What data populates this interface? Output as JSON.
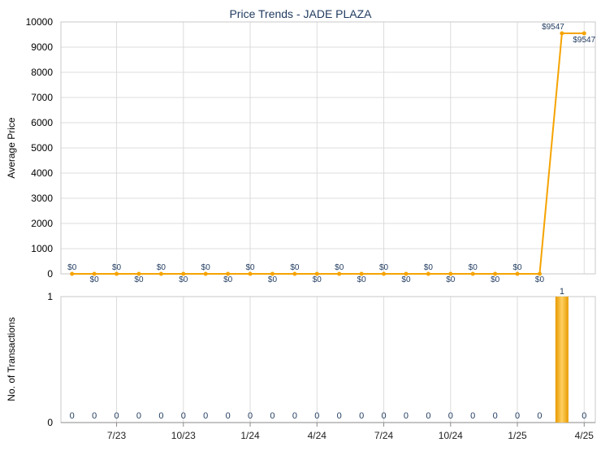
{
  "chart_data": [
    {
      "type": "line",
      "title": "Price Trends - JADE PLAZA",
      "ylabel": "Average Price",
      "xlabel": "",
      "ylim": [
        0,
        10000
      ],
      "yticks": [
        "0",
        "1000",
        "2000",
        "3000",
        "4000",
        "5000",
        "6000",
        "7000",
        "8000",
        "9000",
        "10000"
      ],
      "x": [
        "2023-05",
        "2023-06",
        "2023-07",
        "2023-08",
        "2023-09",
        "2023-10",
        "2023-11",
        "2023-12",
        "2024-01",
        "2024-02",
        "2024-03",
        "2024-04",
        "2024-05",
        "2024-06",
        "2024-07",
        "2024-08",
        "2024-09",
        "2024-10",
        "2024-11",
        "2024-12",
        "2025-01",
        "2025-02",
        "2025-03",
        "2025-04"
      ],
      "series": [
        {
          "values": [
            0,
            0,
            0,
            0,
            0,
            0,
            0,
            0,
            0,
            0,
            0,
            0,
            0,
            0,
            0,
            0,
            0,
            0,
            0,
            0,
            0,
            0,
            9547,
            9547
          ],
          "labels": [
            "$0",
            "$0",
            "$0",
            "$0",
            "$0",
            "$0",
            "$0",
            "$0",
            "$0",
            "$0",
            "$0",
            "$0",
            "$0",
            "$0",
            "$0",
            "$0",
            "$0",
            "$0",
            "$0",
            "$0",
            "$0",
            "$0",
            "$9547",
            "$9547"
          ]
        }
      ],
      "grid": true,
      "line_color": "#f5a300"
    },
    {
      "type": "bar",
      "ylabel": "No. of Transactions",
      "ylim": [
        0,
        1
      ],
      "yticks": [
        "0",
        "1"
      ],
      "x": [
        "2023-05",
        "2023-06",
        "2023-07",
        "2023-08",
        "2023-09",
        "2023-10",
        "2023-11",
        "2023-12",
        "2024-01",
        "2024-02",
        "2024-03",
        "2024-04",
        "2024-05",
        "2024-06",
        "2024-07",
        "2024-08",
        "2024-09",
        "2024-10",
        "2024-11",
        "2024-12",
        "2025-01",
        "2025-02",
        "2025-03",
        "2025-04"
      ],
      "values": [
        0,
        0,
        0,
        0,
        0,
        0,
        0,
        0,
        0,
        0,
        0,
        0,
        0,
        0,
        0,
        0,
        0,
        0,
        0,
        0,
        0,
        0,
        1,
        0
      ],
      "labels": [
        "0",
        "0",
        "0",
        "0",
        "0",
        "0",
        "0",
        "0",
        "0",
        "0",
        "0",
        "0",
        "0",
        "0",
        "0",
        "0",
        "0",
        "0",
        "0",
        "0",
        "0",
        "0",
        "1",
        "0"
      ],
      "xtick_labels": [
        "7/23",
        "10/23",
        "1/24",
        "4/24",
        "7/24",
        "10/24",
        "1/25",
        "4/25"
      ],
      "xtick_positions": [
        "2023-07",
        "2023-10",
        "2024-01",
        "2024-04",
        "2024-07",
        "2024-10",
        "2025-01",
        "2025-04"
      ],
      "grid": true,
      "bar_color": "#f5a300"
    }
  ]
}
